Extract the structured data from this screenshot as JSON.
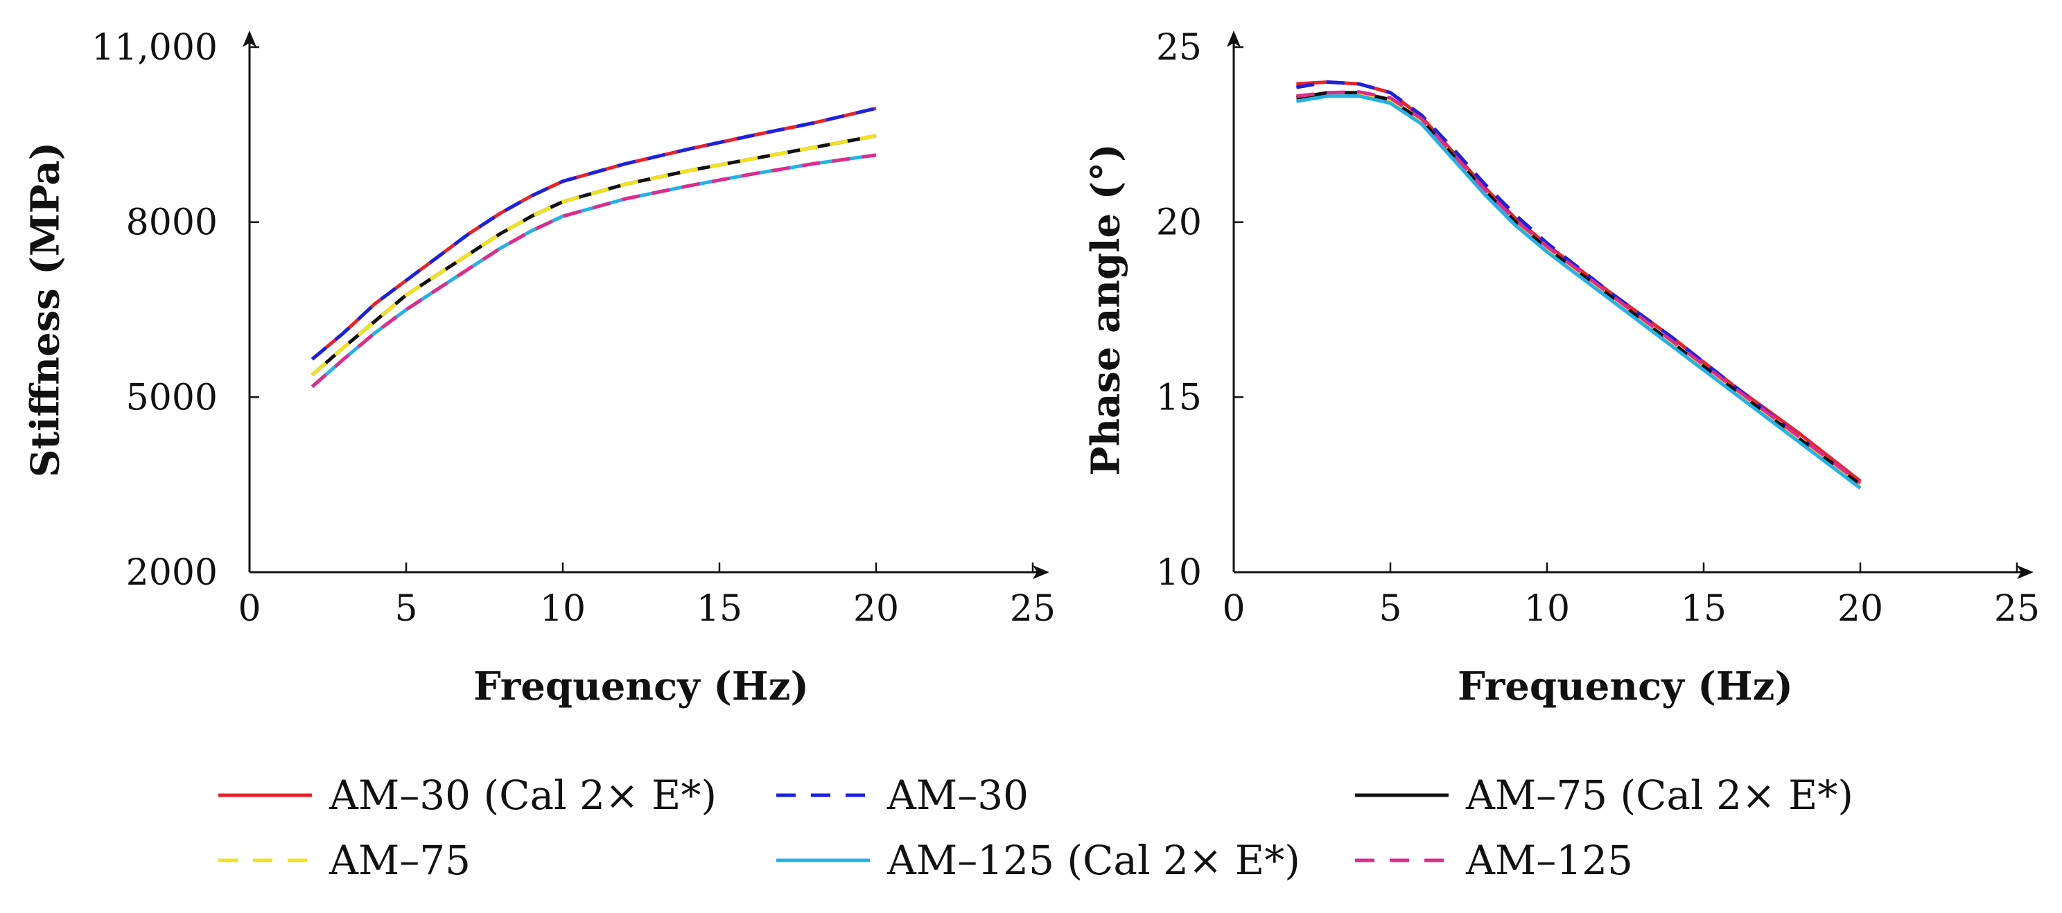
{
  "chart_data": [
    {
      "type": "line",
      "title": "",
      "xlabel": "Frequency (Hz)",
      "ylabel": "Stiffness (MPa)",
      "xlim": [
        0,
        25
      ],
      "ylim": [
        2000,
        11000
      ],
      "xticks": [
        0,
        5,
        10,
        15,
        20,
        25
      ],
      "xtick_labels": [
        "0",
        "5",
        "10",
        "15",
        "20",
        "25"
      ],
      "yticks": [
        2000,
        5000,
        8000,
        11000
      ],
      "ytick_labels": [
        "2000",
        "5000",
        "8000",
        "11,000"
      ],
      "grid": false,
      "x": [
        2,
        3,
        4,
        5,
        6,
        7,
        8,
        9,
        10,
        12,
        14,
        16,
        18,
        20
      ],
      "series": [
        {
          "name": "AM–30 (Cal 2× E*)",
          "color": "#e8232a",
          "dash": "solid",
          "values": [
            5650,
            6100,
            6600,
            7000,
            7400,
            7800,
            8150,
            8450,
            8700,
            9000,
            9250,
            9480,
            9700,
            9950
          ]
        },
        {
          "name": "AM–30",
          "color": "#1a22e0",
          "dash": "dashed",
          "values": [
            5650,
            6100,
            6600,
            7000,
            7400,
            7800,
            8150,
            8450,
            8700,
            9000,
            9250,
            9480,
            9700,
            9950
          ]
        },
        {
          "name": "AM–75 (Cal 2× E*)",
          "color": "#111111",
          "dash": "solid",
          "values": [
            5380,
            5850,
            6300,
            6750,
            7100,
            7450,
            7800,
            8100,
            8350,
            8650,
            8880,
            9080,
            9280,
            9480
          ]
        },
        {
          "name": "AM–75",
          "color": "#f2e21c",
          "dash": "dashed",
          "values": [
            5380,
            5850,
            6300,
            6750,
            7100,
            7450,
            7800,
            8100,
            8350,
            8650,
            8880,
            9080,
            9280,
            9480
          ]
        },
        {
          "name": "AM–125 (Cal 2× E*)",
          "color": "#22b2e8",
          "dash": "solid",
          "values": [
            5180,
            5650,
            6100,
            6500,
            6850,
            7200,
            7550,
            7850,
            8100,
            8400,
            8620,
            8820,
            9000,
            9150
          ]
        },
        {
          "name": "AM–125",
          "color": "#e02a8c",
          "dash": "dashed",
          "values": [
            5180,
            5650,
            6100,
            6500,
            6850,
            7200,
            7550,
            7850,
            8100,
            8400,
            8620,
            8820,
            9000,
            9150
          ]
        }
      ]
    },
    {
      "type": "line",
      "title": "",
      "xlabel": "Frequency (Hz)",
      "ylabel": "Phase angle (°)",
      "xlim": [
        0,
        25
      ],
      "ylim": [
        10,
        25
      ],
      "xticks": [
        0,
        5,
        10,
        15,
        20,
        25
      ],
      "xtick_labels": [
        "0",
        "5",
        "10",
        "15",
        "20",
        "25"
      ],
      "yticks": [
        10,
        15,
        20,
        25
      ],
      "ytick_labels": [
        "10",
        "15",
        "20",
        "25"
      ],
      "grid": false,
      "x": [
        2,
        3,
        4,
        5,
        6,
        7,
        8,
        9,
        10,
        12,
        14,
        16,
        18,
        20
      ],
      "series": [
        {
          "name": "AM–30 (Cal 2× E*)",
          "color": "#e8232a",
          "dash": "solid",
          "values": [
            23.95,
            24.0,
            23.95,
            23.7,
            23.0,
            22.0,
            21.0,
            20.1,
            19.35,
            18.0,
            16.7,
            15.3,
            14.0,
            12.6
          ]
        },
        {
          "name": "AM–30",
          "color": "#1a22e0",
          "dash": "dashed",
          "values": [
            23.85,
            24.0,
            23.95,
            23.7,
            23.05,
            22.1,
            21.1,
            20.2,
            19.4,
            18.0,
            16.7,
            15.3,
            13.9,
            12.5
          ]
        },
        {
          "name": "AM–75 (Cal 2× E*)",
          "color": "#111111",
          "dash": "solid",
          "values": [
            23.55,
            23.7,
            23.7,
            23.5,
            22.9,
            21.9,
            20.9,
            20.0,
            19.25,
            17.9,
            16.55,
            15.2,
            13.85,
            12.5
          ]
        },
        {
          "name": "AM–75",
          "color": "#f2e21c",
          "dash": "dashed",
          "values": [
            23.6,
            23.7,
            23.7,
            23.5,
            22.9,
            21.9,
            20.9,
            20.0,
            19.25,
            17.9,
            16.55,
            15.2,
            13.85,
            12.5
          ]
        },
        {
          "name": "AM–125 (Cal 2× E*)",
          "color": "#22b2e8",
          "dash": "solid",
          "values": [
            23.45,
            23.6,
            23.6,
            23.4,
            22.8,
            21.8,
            20.8,
            19.9,
            19.15,
            17.8,
            16.45,
            15.1,
            13.75,
            12.4
          ]
        },
        {
          "name": "AM–125",
          "color": "#e02a8c",
          "dash": "dashed",
          "values": [
            23.6,
            23.7,
            23.72,
            23.55,
            22.95,
            21.95,
            20.95,
            20.05,
            19.3,
            17.95,
            16.6,
            15.25,
            13.9,
            12.55
          ]
        }
      ]
    }
  ],
  "legend": {
    "position": "bottom",
    "entries": [
      {
        "label": "AM–30 (Cal 2× E*)",
        "color": "#e8232a",
        "dash": "solid"
      },
      {
        "label": "AM–30",
        "color": "#1a22e0",
        "dash": "dashed"
      },
      {
        "label": "AM–75 (Cal 2× E*)",
        "color": "#111111",
        "dash": "solid"
      },
      {
        "label": "AM–75",
        "color": "#f2e21c",
        "dash": "dashed"
      },
      {
        "label": "AM–125 (Cal 2× E*)",
        "color": "#22b2e8",
        "dash": "solid"
      },
      {
        "label": "AM–125",
        "color": "#e02a8c",
        "dash": "dashed"
      }
    ]
  }
}
